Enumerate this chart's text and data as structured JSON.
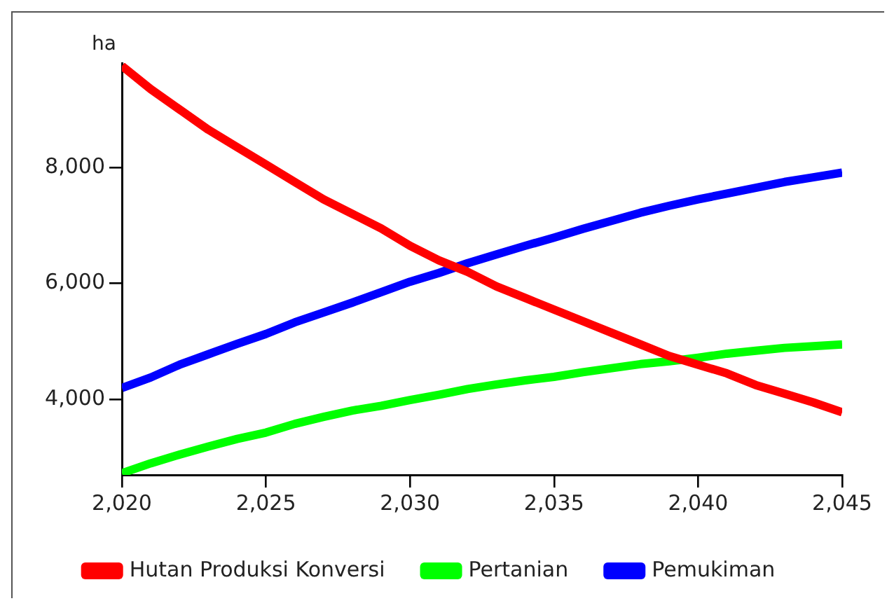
{
  "chart_data": {
    "type": "line",
    "ylabel": "ha",
    "x": [
      2020,
      2021,
      2022,
      2023,
      2024,
      2025,
      2026,
      2027,
      2028,
      2029,
      2030,
      2031,
      2032,
      2033,
      2034,
      2035,
      2036,
      2037,
      2038,
      2039,
      2040,
      2041,
      2042,
      2043,
      2044,
      2045
    ],
    "series": [
      {
        "name": "Hutan Produksi Konversi",
        "color": "#ff0000",
        "values": [
          9750,
          9350,
          9000,
          8650,
          8350,
          8050,
          7750,
          7450,
          7200,
          6950,
          6650,
          6400,
          6200,
          5950,
          5750,
          5550,
          5350,
          5150,
          4950,
          4750,
          4600,
          4450,
          4250,
          4100,
          3950,
          3780
        ]
      },
      {
        "name": "Pertanian",
        "color": "#00ff00",
        "values": [
          2730,
          2900,
          3050,
          3190,
          3320,
          3430,
          3580,
          3700,
          3810,
          3890,
          3990,
          4080,
          4180,
          4260,
          4330,
          4390,
          4470,
          4540,
          4610,
          4660,
          4720,
          4790,
          4840,
          4890,
          4920,
          4950
        ]
      },
      {
        "name": "Pemukiman",
        "color": "#0000ff",
        "values": [
          4200,
          4380,
          4600,
          4780,
          4960,
          5130,
          5330,
          5500,
          5670,
          5850,
          6030,
          6180,
          6350,
          6500,
          6650,
          6790,
          6940,
          7080,
          7220,
          7340,
          7450,
          7550,
          7650,
          7750,
          7830,
          7910
        ]
      }
    ],
    "xlim": [
      2020,
      2045
    ],
    "xticks": [
      {
        "value": 2020,
        "label": "2,020"
      },
      {
        "value": 2025,
        "label": "2,025"
      },
      {
        "value": 2030,
        "label": "2,030"
      },
      {
        "value": 2035,
        "label": "2,035"
      },
      {
        "value": 2040,
        "label": "2,040"
      },
      {
        "value": 2045,
        "label": "2,045"
      }
    ],
    "ylim": [
      2700,
      9800
    ],
    "yticks": [
      {
        "value": 4000,
        "label": "4,000"
      },
      {
        "value": 6000,
        "label": "6,000"
      },
      {
        "value": 8000,
        "label": "8,000"
      }
    ],
    "grid": false,
    "legend": "bottom",
    "marker": "none",
    "line_style": "solid"
  }
}
